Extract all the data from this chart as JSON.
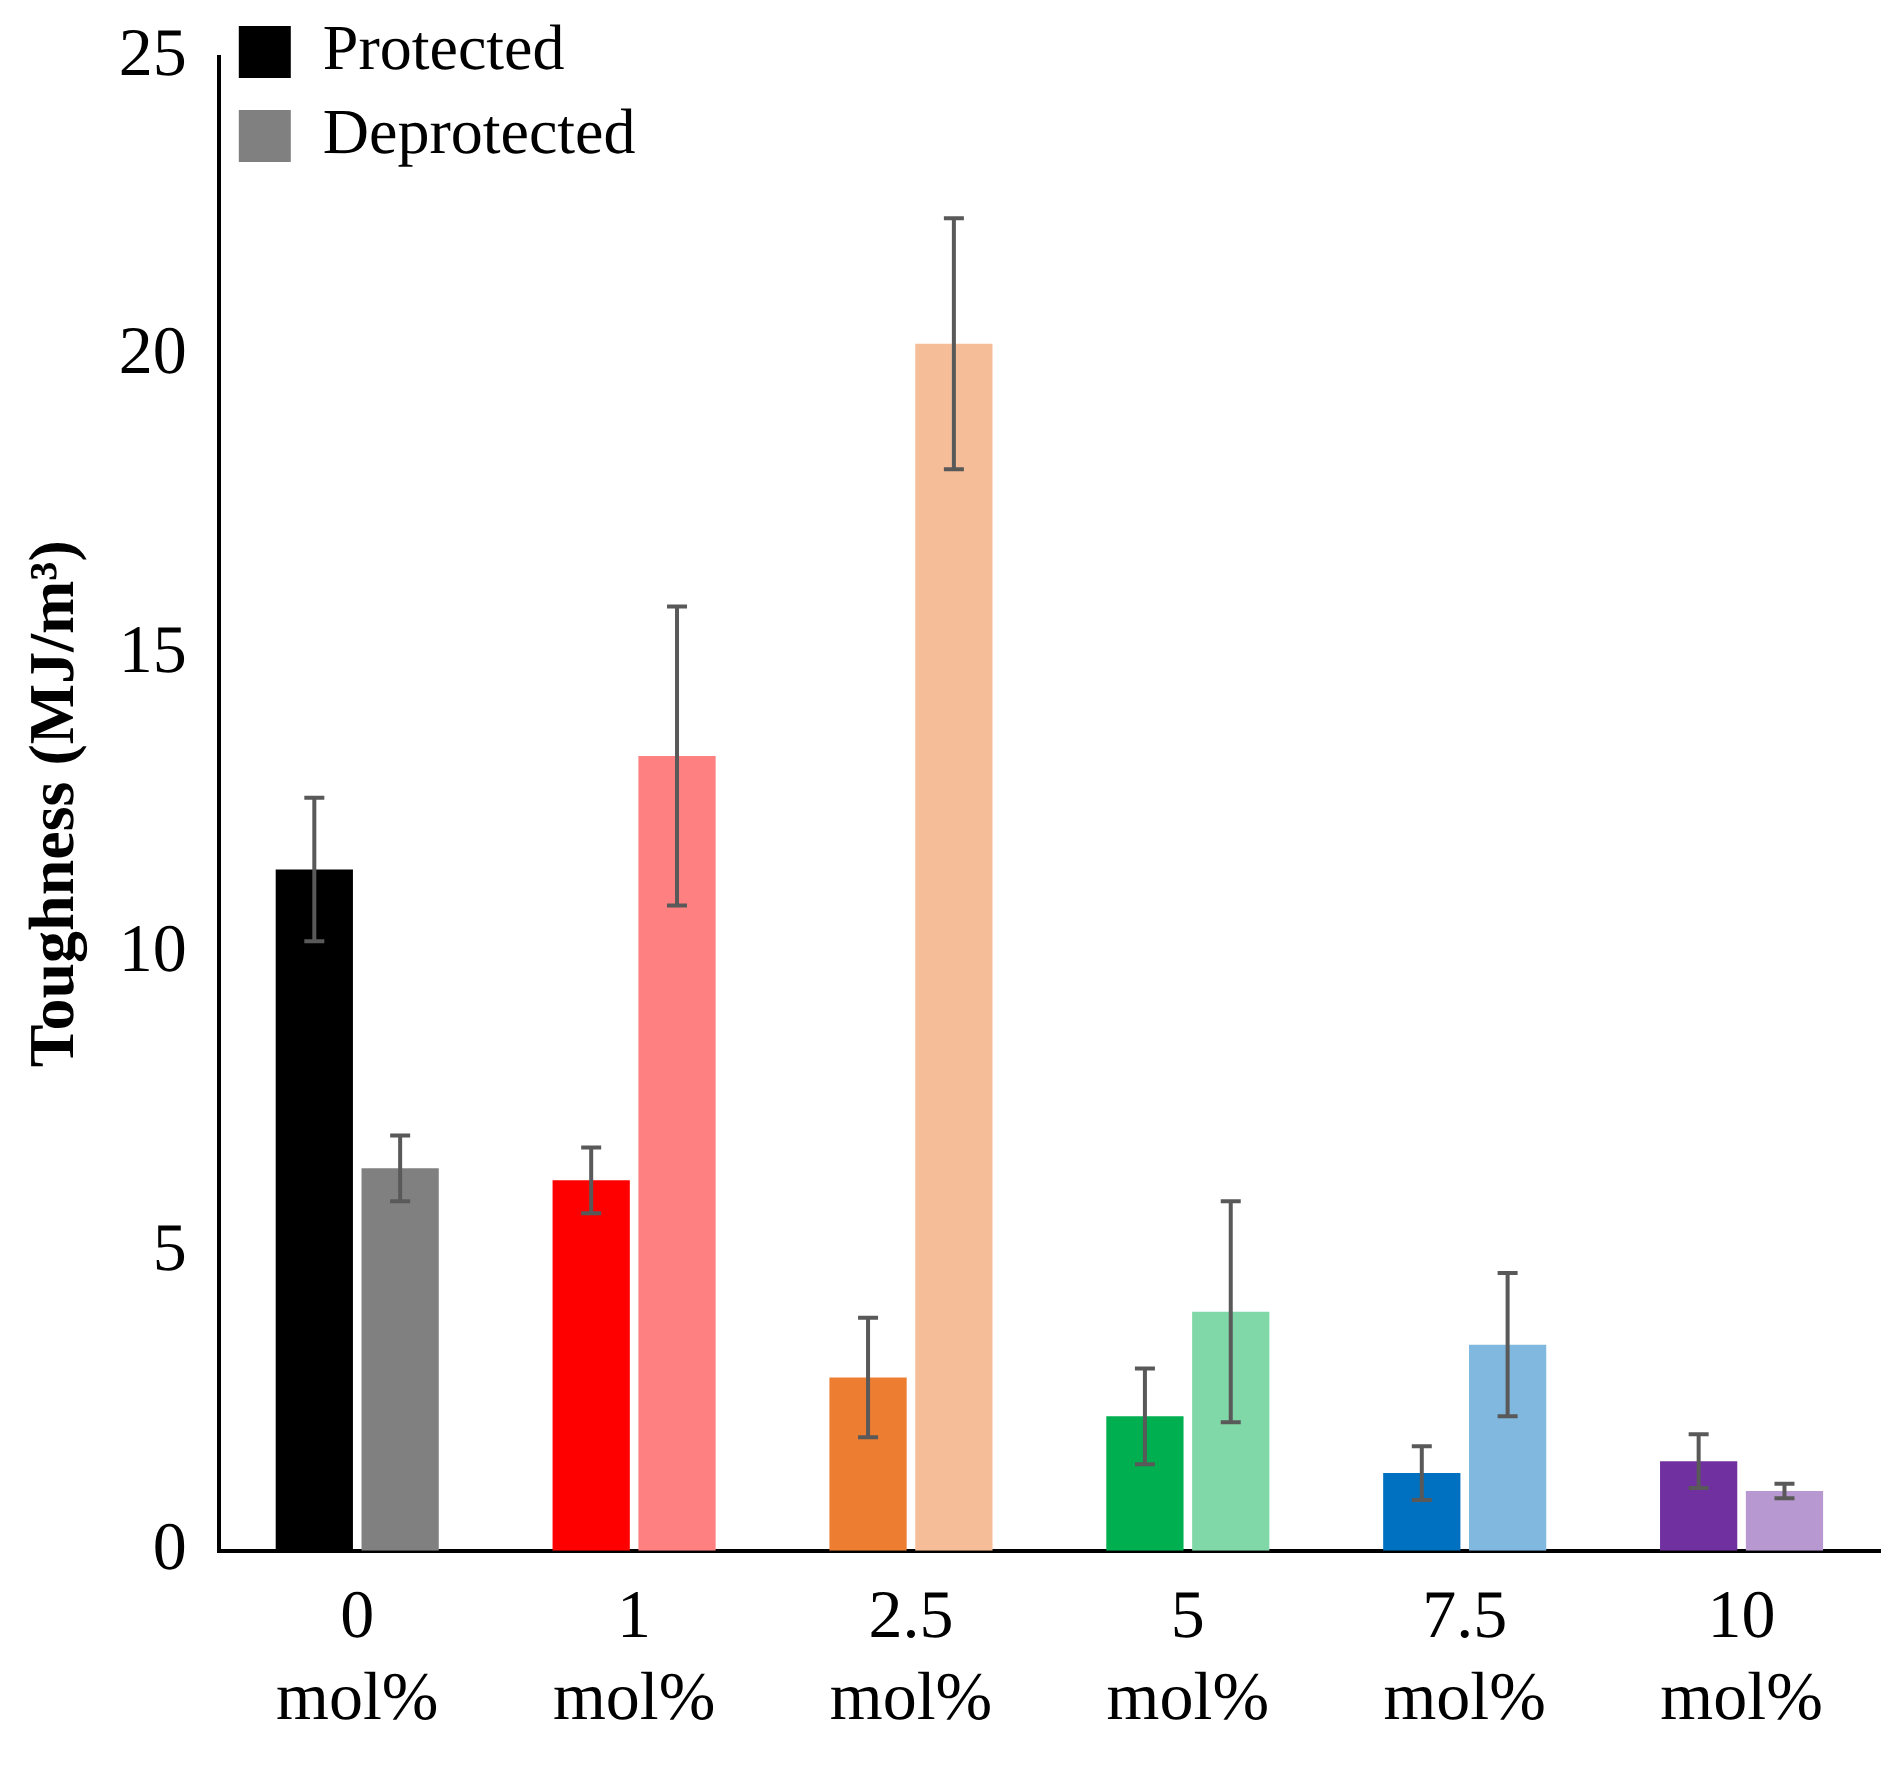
{
  "chart_data": {
    "type": "bar",
    "ylabel": "Toughness (MJ/m³)",
    "categories": [
      "0 mol%",
      "1 mol%",
      "2.5 mol%",
      "5 mol%",
      "7.5 mol%",
      "10 mol%"
    ],
    "series": [
      {
        "name": "Protected",
        "color": "#000000",
        "colors": [
          "#000000",
          "#ff0000",
          "#ed7d31",
          "#00b050",
          "#0070c0",
          "#7030a0"
        ],
        "values": [
          11.4,
          6.2,
          2.9,
          2.25,
          1.3,
          1.5
        ],
        "errors": [
          1.2,
          0.55,
          1.0,
          0.8,
          0.45,
          0.45
        ]
      },
      {
        "name": "Deprotected",
        "color": "#808080",
        "colors": [
          "#808080",
          "#ff8080",
          "#f6be98",
          "#80d8a8",
          "#80b8e0",
          "#b898d0"
        ],
        "values": [
          6.4,
          13.3,
          20.2,
          4.0,
          3.45,
          1.0
        ],
        "errors": [
          0.55,
          2.5,
          2.1,
          1.85,
          1.2,
          0.12
        ]
      }
    ],
    "ylim": [
      0,
      25
    ],
    "yticks": [
      0,
      5,
      10,
      15,
      20,
      25
    ],
    "grid": false,
    "legend": "top left"
  }
}
